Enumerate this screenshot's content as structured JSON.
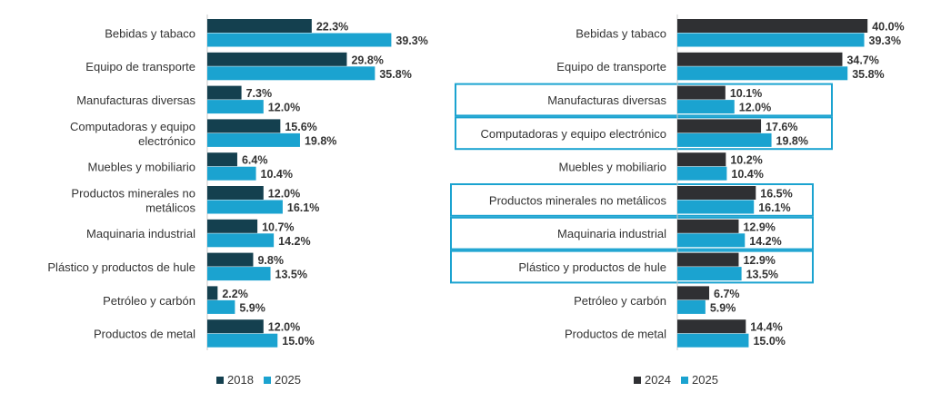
{
  "chart_data": [
    {
      "type": "bar",
      "orientation": "horizontal",
      "categories": [
        "Bebidas y tabaco",
        "Equipo de transporte",
        "Manufacturas diversas",
        "Computadoras y equipo electrónico",
        "Muebles y mobiliario",
        "Productos minerales no metálicos",
        "Maquinaria industrial",
        "Plástico y productos de hule",
        "Petróleo y carbón",
        "Productos de metal"
      ],
      "series": [
        {
          "name": "2018",
          "color": "#14404f",
          "values": [
            22.3,
            29.8,
            7.3,
            15.6,
            6.4,
            12.0,
            10.7,
            9.8,
            2.2,
            12.0
          ]
        },
        {
          "name": "2025",
          "color": "#1ba3d0",
          "values": [
            39.3,
            35.8,
            12.0,
            19.8,
            10.4,
            16.1,
            14.2,
            13.5,
            5.9,
            15.0
          ]
        }
      ],
      "value_suffix": "%",
      "legend_position": "bottom-left",
      "grid": false
    },
    {
      "type": "bar",
      "orientation": "horizontal",
      "categories": [
        "Bebidas y tabaco",
        "Equipo de transporte",
        "Manufacturas diversas",
        "Computadoras y equipo electrónico",
        "Muebles y mobiliario",
        "Productos minerales no metálicos",
        "Maquinaria industrial",
        "Plástico y productos de hule",
        "Petróleo y carbón",
        "Productos de metal"
      ],
      "series": [
        {
          "name": "2024",
          "color": "#2f3033",
          "values": [
            40.0,
            34.7,
            10.1,
            17.6,
            10.2,
            16.5,
            12.9,
            12.9,
            6.7,
            14.4
          ]
        },
        {
          "name": "2025",
          "color": "#1ba3d0",
          "values": [
            39.3,
            35.8,
            12.0,
            19.8,
            10.4,
            16.1,
            14.2,
            13.5,
            5.9,
            15.0
          ]
        }
      ],
      "highlighted_categories": [
        "Manufacturas diversas",
        "Computadoras y equipo electrónico",
        "Productos minerales no metálicos",
        "Maquinaria industrial",
        "Plástico y productos de hule"
      ],
      "highlight_color": "#1ba3d0",
      "value_suffix": "%",
      "legend_position": "bottom-center",
      "grid": false
    }
  ]
}
